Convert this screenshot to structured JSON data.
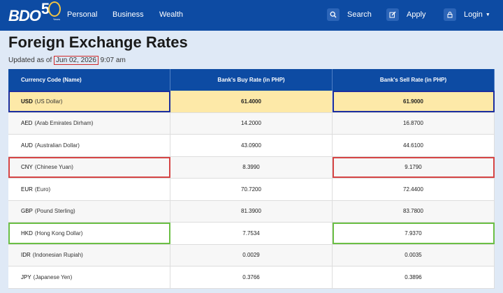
{
  "nav": {
    "logo_text": "BDO",
    "logo_fifty_digit": "5",
    "logo_years": "Years",
    "links": [
      "Personal",
      "Business",
      "Wealth"
    ],
    "search_label": "Search",
    "apply_label": "Apply",
    "login_label": "Login"
  },
  "page": {
    "title": "Foreign Exchange Rates",
    "updated_prefix": "Updated as of",
    "updated_date": "Jun 02, 2026",
    "updated_time": "9:07 am"
  },
  "table": {
    "headers": [
      "Currency Code (Name)",
      "Bank's Buy Rate (in PHP)",
      "Bank's Sell Rate (in PHP)"
    ],
    "rows": [
      {
        "code": "USD",
        "name": "(US Dollar)",
        "buy": "61.4000",
        "sell": "61.9000"
      },
      {
        "code": "AED",
        "name": "(Arab Emirates Dirham)",
        "buy": "14.2000",
        "sell": "16.8700"
      },
      {
        "code": "AUD",
        "name": "(Australian Dollar)",
        "buy": "43.0900",
        "sell": "44.6100"
      },
      {
        "code": "CNY",
        "name": "(Chinese Yuan)",
        "buy": "8.3990",
        "sell": "9.1790"
      },
      {
        "code": "EUR",
        "name": "(Euro)",
        "buy": "70.7200",
        "sell": "72.4400"
      },
      {
        "code": "GBP",
        "name": "(Pound Sterling)",
        "buy": "81.3900",
        "sell": "83.7800"
      },
      {
        "code": "HKD",
        "name": "(Hong Kong Dollar)",
        "buy": "7.7534",
        "sell": "7.9370"
      },
      {
        "code": "IDR",
        "name": "(Indonesian Rupiah)",
        "buy": "0.0029",
        "sell": "0.0035"
      },
      {
        "code": "JPY",
        "name": "(Japanese Yen)",
        "buy": "0.3766",
        "sell": "0.3896"
      }
    ]
  },
  "colors": {
    "nav_bg": "#0d4ba3",
    "page_bg": "#dfe9f6",
    "highlight_row": "#fde9a8",
    "annotation_blue": "#1c2fa0",
    "annotation_red": "#d64545",
    "annotation_green": "#6bbf45"
  },
  "icons": [
    "search-icon",
    "edit-icon",
    "lock-icon",
    "chevron-down-icon"
  ]
}
